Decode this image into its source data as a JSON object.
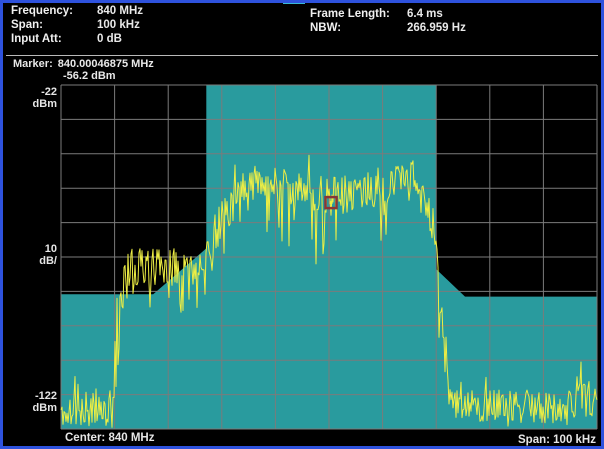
{
  "header": {
    "left": [
      {
        "label": "Frequency:",
        "value": "840 MHz"
      },
      {
        "label": "Span:",
        "value": "100 kHz"
      },
      {
        "label": "Input Att:",
        "value": "0 dB"
      }
    ],
    "right": [
      {
        "label": "Frame Length:",
        "value": "6.4 ms"
      },
      {
        "label": "NBW:",
        "value": "266.959 Hz"
      }
    ]
  },
  "marker_readout": {
    "label": "Marker:",
    "frequency": "840.00046875 MHz",
    "level": "-56.2 dBm"
  },
  "y_axis_labels": {
    "ref": "-22",
    "ref_unit": "dBm",
    "scale": "10",
    "scale_unit": "dB/",
    "floor": "-122",
    "floor_unit": "dBm"
  },
  "footer": {
    "center": "Center: 840 MHz",
    "span": "Span: 100 kHz"
  },
  "colors": {
    "border_blue": "#2e52dd",
    "background": "#000000",
    "mask_teal": "#299b9e",
    "trace_yellow": "#eeee44",
    "grid_gray": "#7b7b7b",
    "marker_red": "#8a3636",
    "text_white": "#f0f0f0"
  },
  "chart_data": {
    "type": "line",
    "title": "Spectrum trace with emission mask",
    "x_axis": {
      "center": "840 MHz",
      "span": "100 kHz",
      "divisions": 10
    },
    "y_axis": {
      "ref_dbm": -22,
      "scale_db_per_div": 10,
      "floor_dbm": -122,
      "divisions": 10
    },
    "marker": {
      "freq_mhz": 840.00046875,
      "level_dbm": -56.2,
      "x_frac": 0.5037
    },
    "mask_polygon": [
      [
        0,
        -82.8
      ],
      [
        0.172,
        -82.8
      ],
      [
        0.271,
        -69.5
      ],
      [
        0.271,
        -22
      ],
      [
        0.6996,
        -22
      ],
      [
        0.6996,
        -75.5
      ],
      [
        0.7537,
        -83.5
      ],
      [
        1,
        -83.5
      ]
    ],
    "trace_envelope": [
      [
        0.0,
        -118,
        7,
        2
      ],
      [
        0.093,
        -117,
        8,
        2
      ],
      [
        0.101,
        -111,
        17,
        9
      ],
      [
        0.112,
        -85,
        15,
        17
      ],
      [
        0.123,
        -77,
        8,
        14
      ],
      [
        0.261,
        -76,
        8,
        15
      ],
      [
        0.284,
        -68,
        9,
        13
      ],
      [
        0.317,
        -58,
        8,
        15
      ],
      [
        0.351,
        -54,
        9,
        16
      ],
      [
        0.369,
        -50,
        6,
        12
      ],
      [
        0.392,
        -53,
        8,
        16
      ],
      [
        0.451,
        -55,
        8,
        17
      ],
      [
        0.508,
        -56,
        8,
        17
      ],
      [
        0.563,
        -55,
        8,
        17
      ],
      [
        0.61,
        -54,
        8,
        16
      ],
      [
        0.638,
        -50,
        6,
        13
      ],
      [
        0.653,
        -48,
        6,
        12
      ],
      [
        0.668,
        -53,
        7,
        15
      ],
      [
        0.683,
        -58,
        7,
        15
      ],
      [
        0.694,
        -64,
        7,
        12
      ],
      [
        0.705,
        -82,
        9,
        12
      ],
      [
        0.716,
        -103,
        7,
        9
      ],
      [
        0.726,
        -116,
        6,
        3
      ],
      [
        0.825,
        -117,
        7,
        2
      ],
      [
        0.937,
        -117,
        7,
        2
      ],
      [
        1.0,
        -114,
        8,
        2
      ]
    ],
    "noise_seed": 11
  }
}
